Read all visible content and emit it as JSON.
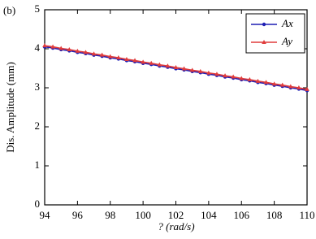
{
  "chart_data": {
    "type": "line",
    "panel_label": "(b)",
    "x_label": "?  (rad/s)",
    "y_label": "Dis. Amplitude (mm)",
    "x": [
      94,
      94.5,
      95,
      95.5,
      96,
      96.5,
      97,
      97.5,
      98,
      98.5,
      99,
      99.5,
      100,
      100.5,
      101,
      101.5,
      102,
      102.5,
      103,
      103.5,
      104,
      104.5,
      105,
      105.5,
      106,
      106.5,
      107,
      107.5,
      108,
      108.5,
      109,
      109.5,
      110
    ],
    "series": [
      {
        "name": "Ax",
        "color": "#1f1fb4",
        "marker": "circle",
        "values": [
          4.05,
          4.02,
          3.98,
          3.95,
          3.91,
          3.88,
          3.84,
          3.81,
          3.77,
          3.74,
          3.7,
          3.67,
          3.63,
          3.6,
          3.56,
          3.53,
          3.49,
          3.46,
          3.42,
          3.39,
          3.35,
          3.32,
          3.28,
          3.25,
          3.21,
          3.18,
          3.14,
          3.11,
          3.07,
          3.04,
          3.0,
          2.97,
          2.93
        ]
      },
      {
        "name": "Ay",
        "color": "#e03c3c",
        "marker": "triangle",
        "values": [
          4.08,
          4.05,
          4.01,
          3.98,
          3.94,
          3.91,
          3.87,
          3.84,
          3.8,
          3.77,
          3.73,
          3.7,
          3.66,
          3.63,
          3.59,
          3.56,
          3.52,
          3.49,
          3.45,
          3.42,
          3.38,
          3.35,
          3.31,
          3.28,
          3.24,
          3.21,
          3.17,
          3.14,
          3.1,
          3.07,
          3.03,
          3.0,
          2.96
        ]
      }
    ],
    "xlim": [
      94,
      110
    ],
    "xticks": [
      94,
      96,
      98,
      100,
      102,
      104,
      106,
      108,
      110
    ],
    "ylim": [
      0,
      5
    ],
    "yticks": [
      0,
      1,
      2,
      3,
      4,
      5
    ],
    "legend": "upper right",
    "grid": false
  }
}
